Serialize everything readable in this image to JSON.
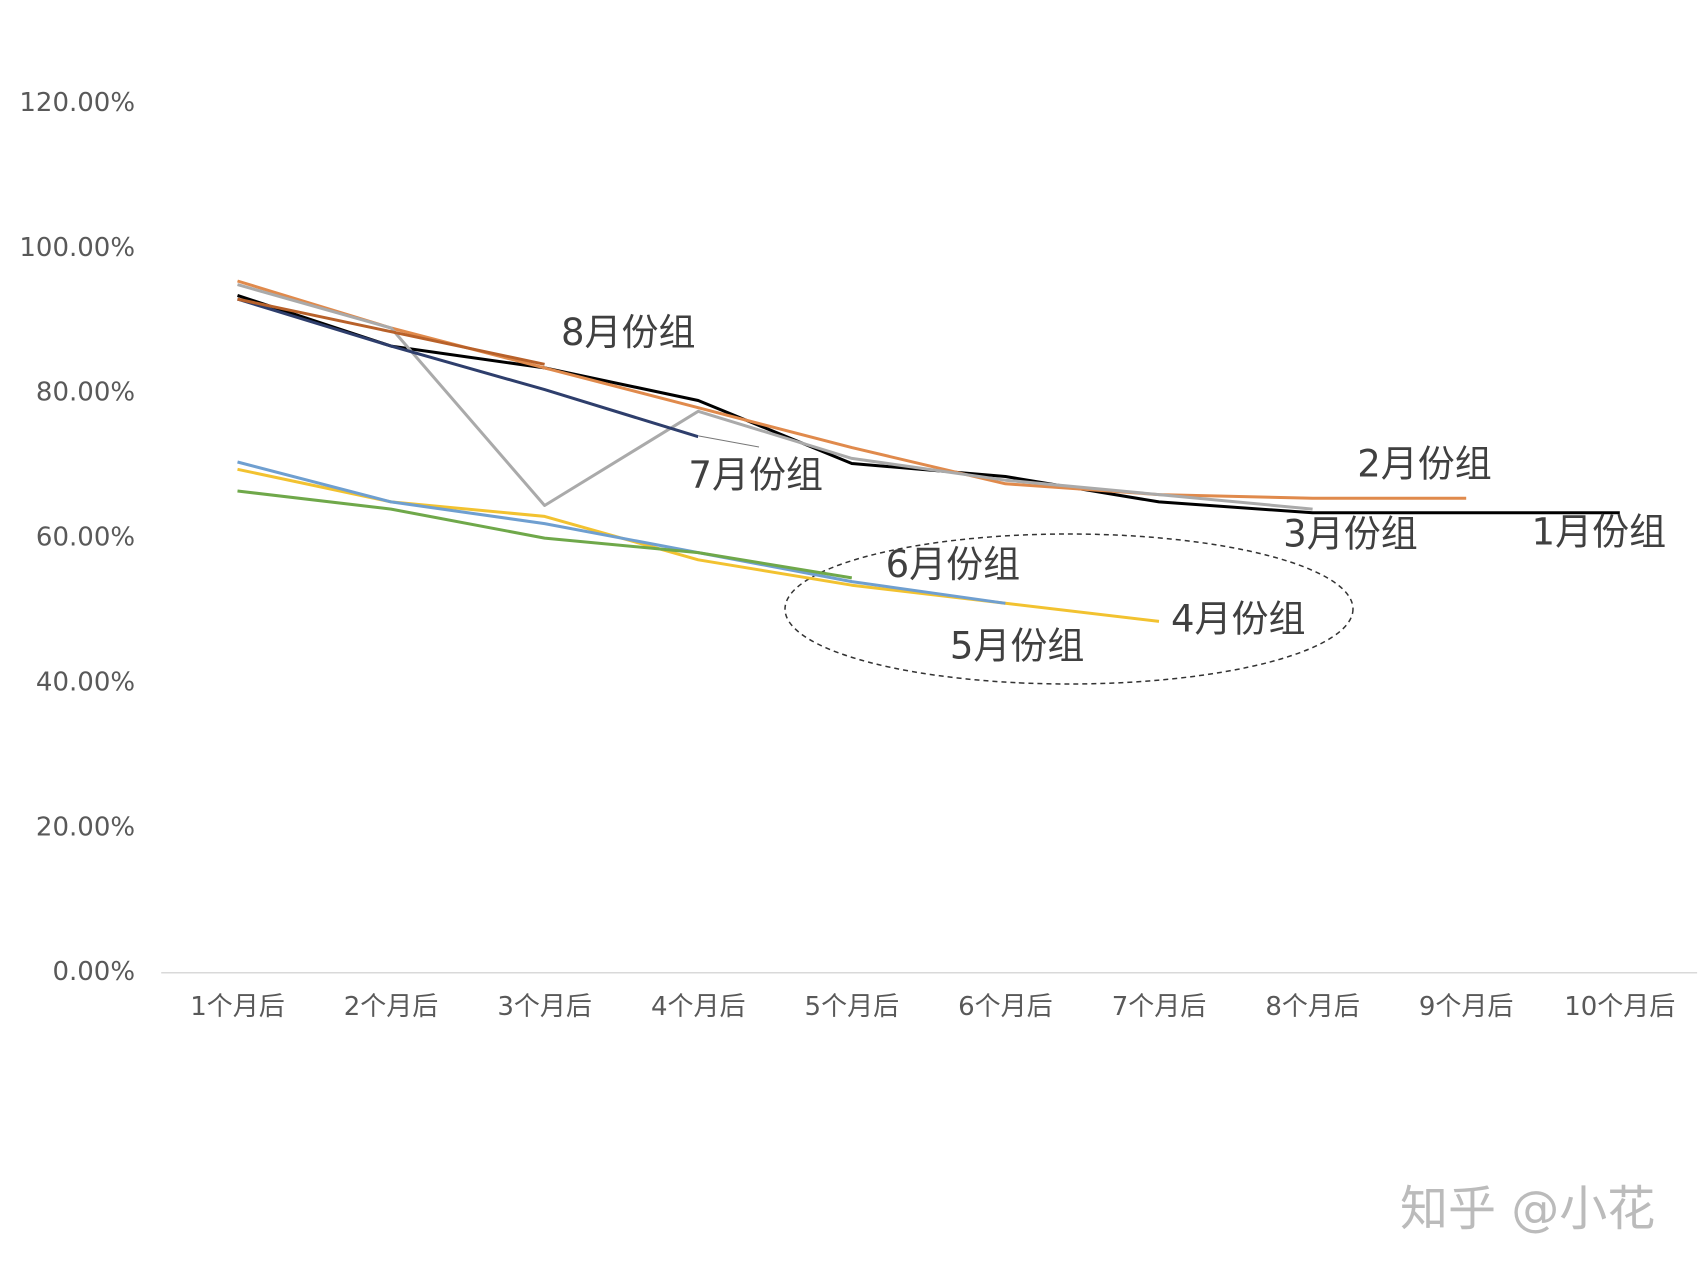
{
  "chart_data": {
    "type": "line",
    "categories": [
      "1个月后",
      "2个月后",
      "3个月后",
      "4个月后",
      "5个月后",
      "6个月后",
      "7个月后",
      "8个月后",
      "9个月后",
      "10个月后"
    ],
    "series": [
      {
        "name": "1月份组",
        "color": "#000000",
        "values": [
          93.5,
          86.5,
          83.5,
          79,
          70.3,
          68.5,
          65,
          63.5,
          63.5,
          63.5
        ]
      },
      {
        "name": "2月份组",
        "color": "#e08a4c",
        "values": [
          95.5,
          89,
          83.5,
          78,
          72.5,
          67.5,
          66,
          65.5,
          65.5,
          null
        ]
      },
      {
        "name": "3月份组",
        "color": "#aaaaaa",
        "values": [
          95,
          89,
          64.5,
          77.5,
          71,
          68,
          66,
          64,
          null,
          null
        ]
      },
      {
        "name": "4月份组",
        "color": "#f2c230",
        "values": [
          69.5,
          65,
          63,
          57,
          53.5,
          51,
          48.5,
          null,
          null,
          null
        ]
      },
      {
        "name": "5月份组",
        "color": "#6f9fd0",
        "values": [
          70.5,
          65,
          62,
          58,
          54,
          51,
          null,
          null,
          null,
          null
        ]
      },
      {
        "name": "6月份组",
        "color": "#6fa84a",
        "values": [
          66.5,
          64,
          60,
          58,
          54.5,
          null,
          null,
          null,
          null,
          null
        ]
      },
      {
        "name": "7月份组",
        "color": "#2e3e6c",
        "values": [
          93,
          86.5,
          80.5,
          74,
          null,
          null,
          null,
          null,
          null,
          null
        ]
      },
      {
        "name": "8月份组",
        "color": "#b8612a",
        "values": [
          93,
          88.5,
          84,
          null,
          null,
          null,
          null,
          null,
          null,
          null
        ]
      }
    ],
    "ylim": [
      0,
      120
    ],
    "yticks": [
      {
        "value": 0,
        "label": "0.00%"
      },
      {
        "value": 20,
        "label": "20.00%"
      },
      {
        "value": 40,
        "label": "40.00%"
      },
      {
        "value": 60,
        "label": "60.00%"
      },
      {
        "value": 80,
        "label": "80.00%"
      },
      {
        "value": 100,
        "label": "100.00%"
      },
      {
        "value": 120,
        "label": "120.00%"
      }
    ],
    "grid": false
  },
  "watermark": "知乎 @小花"
}
